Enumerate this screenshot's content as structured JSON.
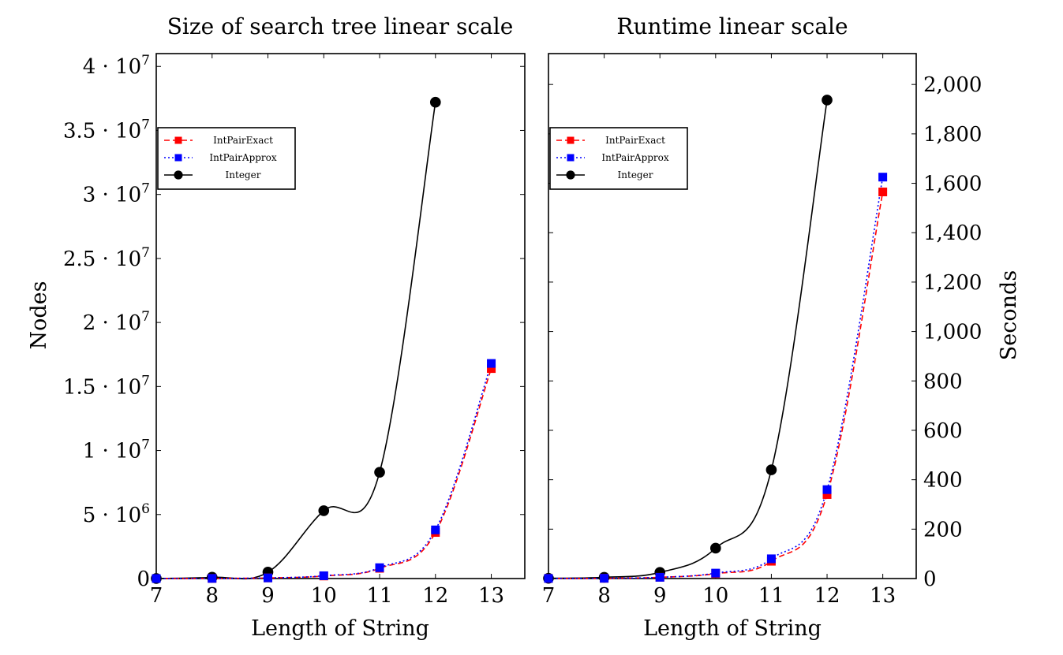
{
  "chart_data": [
    {
      "type": "line",
      "title": "Size of search tree linear scale",
      "xlabel": "Length of String",
      "ylabel": "Nodes",
      "xlim": [
        7,
        13.6
      ],
      "ylim": [
        0,
        41000000
      ],
      "x_ticks": [
        7,
        8,
        9,
        10,
        11,
        12,
        13
      ],
      "y_ticks": [
        {
          "value": 0,
          "label": "0"
        },
        {
          "value": 5000000,
          "label": "5 · 10",
          "exp": "6"
        },
        {
          "value": 10000000,
          "label": "1 · 10",
          "exp": "7"
        },
        {
          "value": 15000000,
          "label": "1.5 · 10",
          "exp": "7"
        },
        {
          "value": 20000000,
          "label": "2 · 10",
          "exp": "7"
        },
        {
          "value": 25000000,
          "label": "2.5 · 10",
          "exp": "7"
        },
        {
          "value": 30000000,
          "label": "3 · 10",
          "exp": "7"
        },
        {
          "value": 35000000,
          "label": "3.5 · 10",
          "exp": "7"
        },
        {
          "value": 40000000,
          "label": "4 · 10",
          "exp": "7"
        }
      ],
      "yaxis_side": "left",
      "grid": false,
      "legend_position": "upper-left",
      "series": [
        {
          "name": "IntPairExact",
          "color": "#ff0000",
          "dash": "dashed",
          "marker": "square",
          "x": [
            7,
            8,
            9,
            10,
            11,
            12,
            13
          ],
          "y": [
            1000,
            10000,
            50000,
            200000,
            800000,
            3600000,
            16400000
          ]
        },
        {
          "name": "IntPairApprox",
          "color": "#0000ff",
          "dash": "dotted",
          "marker": "square",
          "x": [
            7,
            8,
            9,
            10,
            11,
            12,
            13
          ],
          "y": [
            1000,
            10000,
            50000,
            220000,
            850000,
            3800000,
            16800000
          ]
        },
        {
          "name": "Integer",
          "color": "#000000",
          "dash": "solid",
          "marker": "circle",
          "x": [
            7,
            8,
            9,
            10,
            11,
            12
          ],
          "y": [
            5000,
            100000,
            500000,
            5300000,
            8300000,
            37200000
          ]
        }
      ]
    },
    {
      "type": "line",
      "title": "Runtime linear scale",
      "xlabel": "Length of String",
      "ylabel": "Seconds",
      "xlim": [
        7,
        13.6
      ],
      "ylim": [
        0,
        2125
      ],
      "x_ticks": [
        7,
        8,
        9,
        10,
        11,
        12,
        13
      ],
      "y_ticks": [
        {
          "value": 0,
          "label": "0"
        },
        {
          "value": 200,
          "label": "200"
        },
        {
          "value": 400,
          "label": "400"
        },
        {
          "value": 600,
          "label": "600"
        },
        {
          "value": 800,
          "label": "800"
        },
        {
          "value": 1000,
          "label": "1,000"
        },
        {
          "value": 1200,
          "label": "1,200"
        },
        {
          "value": 1400,
          "label": "1,400"
        },
        {
          "value": 1600,
          "label": "1,600"
        },
        {
          "value": 1800,
          "label": "1,800"
        },
        {
          "value": 2000,
          "label": "2,000"
        }
      ],
      "yaxis_side": "right",
      "grid": false,
      "legend_position": "upper-left",
      "series": [
        {
          "name": "IntPairExact",
          "color": "#ff0000",
          "dash": "dashed",
          "marker": "square",
          "x": [
            7,
            8,
            9,
            10,
            11,
            12,
            13
          ],
          "y": [
            0.5,
            1,
            5,
            20,
            70,
            340,
            1565
          ]
        },
        {
          "name": "IntPairApprox",
          "color": "#0000ff",
          "dash": "dotted",
          "marker": "square",
          "x": [
            7,
            8,
            9,
            10,
            11,
            12,
            13
          ],
          "y": [
            0.5,
            1,
            5,
            22,
            80,
            360,
            1625
          ]
        },
        {
          "name": "Integer",
          "color": "#000000",
          "dash": "solid",
          "marker": "circle",
          "x": [
            7,
            8,
            9,
            10,
            11,
            12
          ],
          "y": [
            1,
            5,
            25,
            123,
            440,
            1937
          ]
        }
      ]
    }
  ]
}
